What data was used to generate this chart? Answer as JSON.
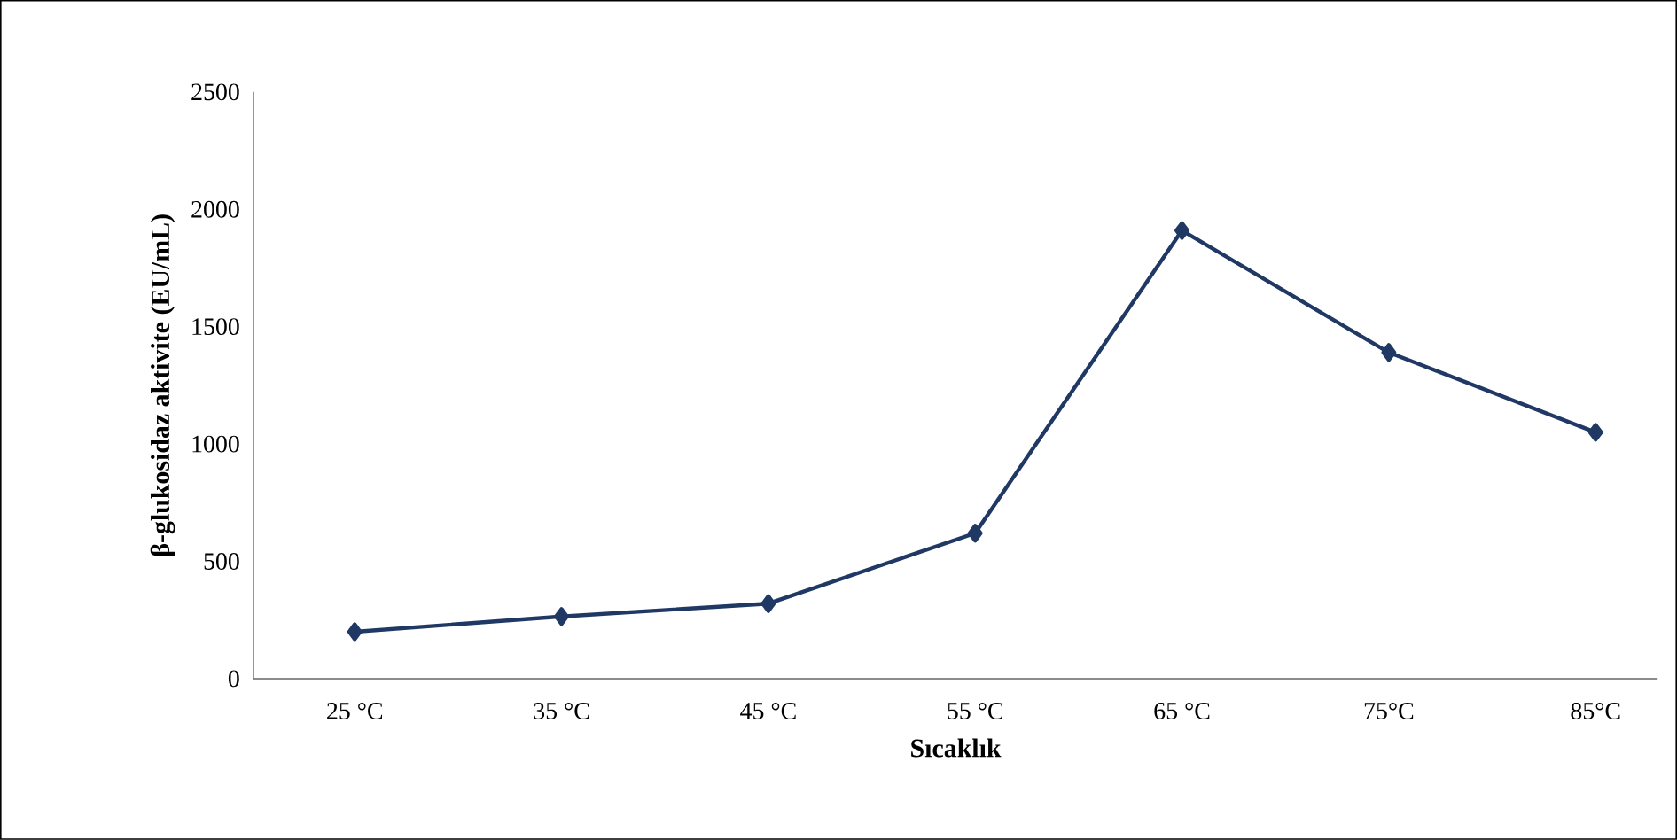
{
  "chart_data": {
    "type": "line",
    "xlabel": "Sıcaklık",
    "ylabel": "β-glukosidaz aktivite (EU/mL)",
    "categories": [
      "25 °C",
      "35 °C",
      "45 °C",
      "55 °C",
      "65 °C",
      "75°C",
      "85°C"
    ],
    "series": [
      {
        "color": "#203864",
        "values": [
          200,
          265,
          320,
          620,
          1910,
          1390,
          1050
        ]
      }
    ],
    "ylim": [
      0,
      2500
    ],
    "yticks": [
      0,
      500,
      1000,
      1500,
      2000,
      2500
    ],
    "marker": "diamond",
    "line_style": "solid",
    "grid": false
  }
}
